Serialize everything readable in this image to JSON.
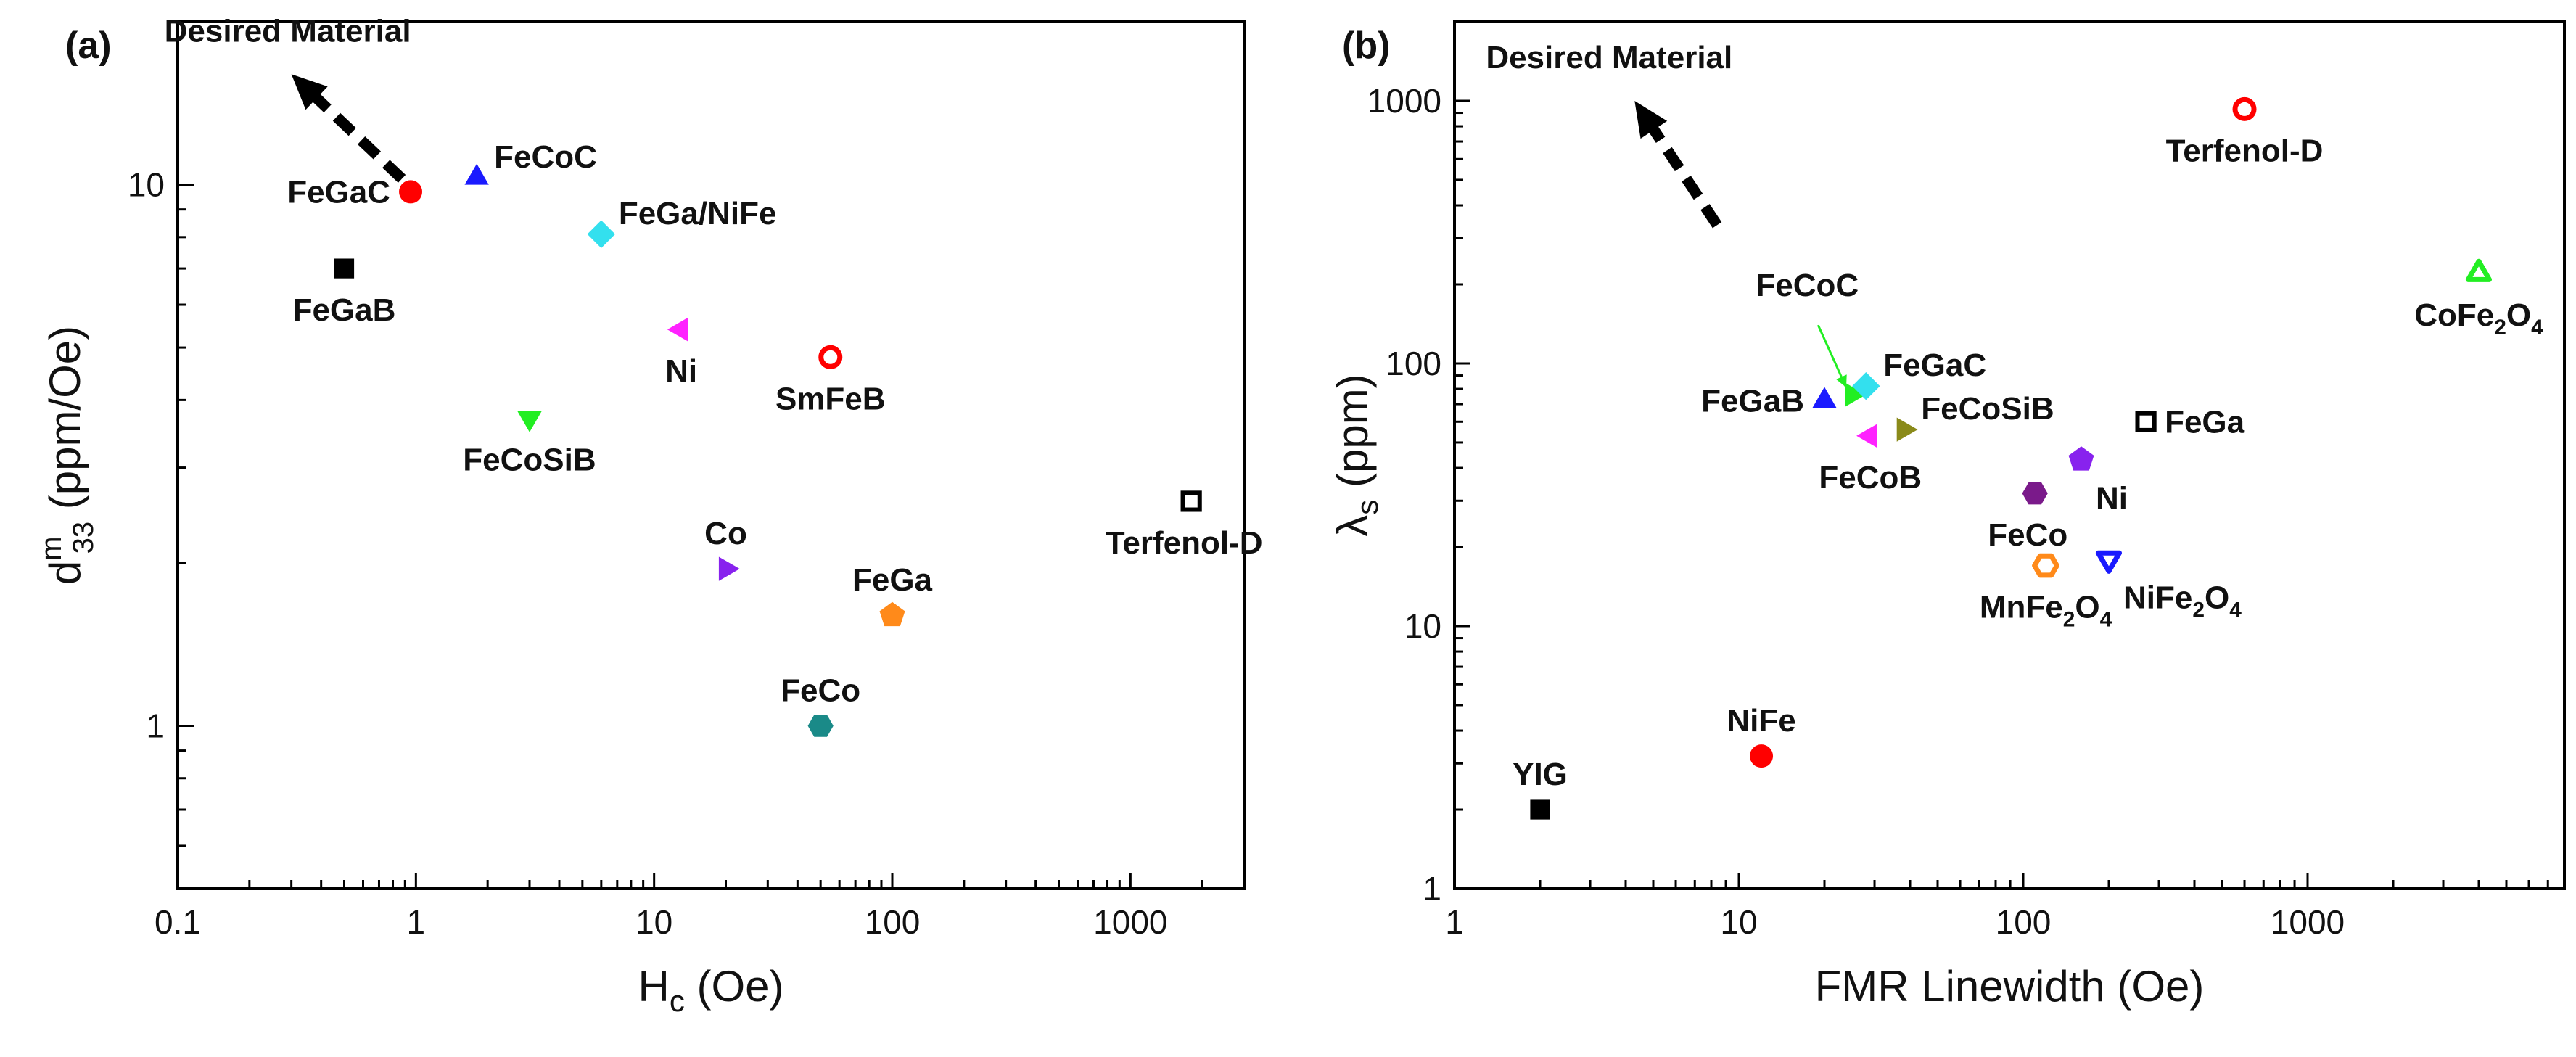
{
  "chart_data": [
    {
      "panel_label": "(a)",
      "type": "scatter",
      "xscale": "log",
      "yscale": "log",
      "xlim": [
        0.1,
        3000
      ],
      "ylim": [
        0.5,
        20
      ],
      "xlabel": "H",
      "xlabel_sub": "c",
      "xlabel_unit": " (Oe)",
      "ylabel": "d",
      "ylabel_sup": "m",
      "ylabel_sub": "33",
      "ylabel_unit": " (ppm/Oe)",
      "x_ticks": [
        0.1,
        1,
        10,
        100,
        1000
      ],
      "x_tick_labels": [
        "0.1",
        "1",
        "10",
        "100",
        "1000"
      ],
      "y_ticks": [
        1,
        10
      ],
      "y_tick_labels": [
        "1",
        "10"
      ],
      "annotation": "Desired Material",
      "arrow_start": [
        0.95,
        9.7
      ],
      "arrow_end": [
        0.3,
        16
      ],
      "points": [
        {
          "name": "FeGaC",
          "label": [
            "FeGaC"
          ],
          "x": 0.95,
          "y": 9.7,
          "marker": "circle",
          "color": "#ff0000",
          "filled": true,
          "label_pos": "left"
        },
        {
          "name": "FeCoC",
          "label": [
            "FeCoC"
          ],
          "x": 1.8,
          "y": 10.3,
          "marker": "triangle-up",
          "color": "#1a1aff",
          "filled": true,
          "label_pos": "upper-right"
        },
        {
          "name": "FeGaB",
          "label": [
            "FeGaB"
          ],
          "x": 0.5,
          "y": 7.0,
          "marker": "square",
          "color": "#000000",
          "filled": true,
          "label_pos": "below"
        },
        {
          "name": "FeGa/NiFe",
          "label": [
            "FeGa/NiFe"
          ],
          "x": 6.0,
          "y": 8.1,
          "marker": "diamond",
          "color": "#33e0ee",
          "filled": true,
          "label_pos": "upper-right"
        },
        {
          "name": "Ni",
          "label": [
            "Ni"
          ],
          "x": 13,
          "y": 5.4,
          "marker": "triangle-left",
          "color": "#ff22ff",
          "filled": true,
          "label_pos": "below"
        },
        {
          "name": "SmFeB",
          "label": [
            "SmFeB"
          ],
          "x": 55,
          "y": 4.8,
          "marker": "circle",
          "color": "#ff0000",
          "filled": false,
          "label_pos": "below"
        },
        {
          "name": "FeCoSiB",
          "label": [
            "FeCoSiB"
          ],
          "x": 3.0,
          "y": 3.7,
          "marker": "triangle-down",
          "color": "#22ee22",
          "filled": true,
          "label_pos": "below"
        },
        {
          "name": "Terfenol-D",
          "label": [
            "Terfenol-D"
          ],
          "x": 1800,
          "y": 2.6,
          "marker": "square",
          "color": "#000000",
          "filled": false,
          "label_pos": "below-left"
        },
        {
          "name": "Co",
          "label": [
            "Co"
          ],
          "x": 20,
          "y": 1.95,
          "marker": "triangle-right",
          "color": "#8822ee",
          "filled": true,
          "label_pos": "above"
        },
        {
          "name": "FeGa",
          "label": [
            "FeGa"
          ],
          "x": 100,
          "y": 1.6,
          "marker": "pentagon",
          "color": "#ff8a1a",
          "filled": true,
          "label_pos": "above"
        },
        {
          "name": "FeCo",
          "label": [
            "FeCo"
          ],
          "x": 50,
          "y": 1.0,
          "marker": "hexagon",
          "color": "#1a8a88",
          "filled": true,
          "label_pos": "above"
        }
      ]
    },
    {
      "panel_label": "(b)",
      "type": "scatter",
      "xscale": "log",
      "yscale": "log",
      "xlim": [
        1,
        8000
      ],
      "ylim": [
        1,
        2000
      ],
      "xlabel": "FMR Linewidth",
      "xlabel_sub": "",
      "xlabel_unit": " (Oe)",
      "ylabel": "λ",
      "ylabel_sup": "",
      "ylabel_sub": "s",
      "ylabel_unit": " (ppm)",
      "x_ticks": [
        1,
        10,
        100,
        1000
      ],
      "x_tick_labels": [
        "1",
        "10",
        "100",
        "1000"
      ],
      "y_ticks": [
        1,
        10,
        100,
        1000
      ],
      "y_tick_labels": [
        "1",
        "10",
        "100",
        "1000"
      ],
      "annotation": "Desired Material",
      "arrow_start": [
        9,
        300
      ],
      "arrow_end": [
        4.3,
        1000
      ],
      "pointer_label": "FeCoC",
      "pointer_from": [
        19,
        140
      ],
      "pointer_to": [
        25,
        76
      ],
      "points": [
        {
          "name": "Terfenol-D",
          "label": [
            "Terfenol-D"
          ],
          "x": 600,
          "y": 930,
          "marker": "circle",
          "color": "#ff0000",
          "filled": false,
          "label_pos": "below"
        },
        {
          "name": "CoFe2O4",
          "label": [
            "CoFe",
            "2",
            "O",
            "4"
          ],
          "x": 4000,
          "y": 220,
          "marker": "triangle-up",
          "color": "#22ee22",
          "filled": false,
          "label_pos": "below"
        },
        {
          "name": "FeCoC",
          "label": [],
          "x": 25,
          "y": 76,
          "marker": "triangle-right",
          "color": "#22ee22",
          "filled": true,
          "label_pos": "none"
        },
        {
          "name": "FeGaC",
          "label": [
            "FeGaC"
          ],
          "x": 28,
          "y": 82,
          "marker": "diamond",
          "color": "#33e0ee",
          "filled": true,
          "label_pos": "upper-right"
        },
        {
          "name": "FeGaB",
          "label": [
            "FeGaB"
          ],
          "x": 20,
          "y": 72,
          "marker": "triangle-up",
          "color": "#1a1aff",
          "filled": true,
          "label_pos": "left"
        },
        {
          "name": "FeCoSiB",
          "label": [
            "FeCoSiB"
          ],
          "x": 38,
          "y": 56,
          "marker": "triangle-right",
          "color": "#8a8a1a",
          "filled": true,
          "label_pos": "upper-right"
        },
        {
          "name": "FeGa",
          "label": [
            "FeGa"
          ],
          "x": 270,
          "y": 60,
          "marker": "square",
          "color": "#000000",
          "filled": false,
          "label_pos": "right"
        },
        {
          "name": "FeCoB",
          "label": [
            "FeCoB"
          ],
          "x": 29,
          "y": 53,
          "marker": "triangle-left",
          "color": "#ff22ff",
          "filled": true,
          "label_pos": "below"
        },
        {
          "name": "Ni",
          "label": [
            "Ni"
          ],
          "x": 160,
          "y": 43,
          "marker": "pentagon",
          "color": "#8822ee",
          "filled": true,
          "label_pos": "below-right"
        },
        {
          "name": "FeCo",
          "label": [
            "FeCo"
          ],
          "x": 110,
          "y": 32,
          "marker": "hexagon",
          "color": "#7a1a8a",
          "filled": true,
          "label_pos": "below-left"
        },
        {
          "name": "MnFe2O4",
          "label": [
            "MnFe",
            "2",
            "O",
            "4"
          ],
          "x": 120,
          "y": 17,
          "marker": "hexagon",
          "color": "#ff8a1a",
          "filled": false,
          "label_pos": "below"
        },
        {
          "name": "NiFe2O4",
          "label": [
            "NiFe",
            "2",
            "O",
            "4"
          ],
          "x": 200,
          "y": 18,
          "marker": "triangle-down",
          "color": "#1a1aff",
          "filled": false,
          "label_pos": "below-right"
        },
        {
          "name": "NiFe",
          "label": [
            "NiFe"
          ],
          "x": 12,
          "y": 3.2,
          "marker": "circle",
          "color": "#ff0000",
          "filled": true,
          "label_pos": "above"
        },
        {
          "name": "YIG",
          "label": [
            "YIG"
          ],
          "x": 2,
          "y": 2.0,
          "marker": "square",
          "color": "#000000",
          "filled": true,
          "label_pos": "above"
        }
      ]
    }
  ]
}
